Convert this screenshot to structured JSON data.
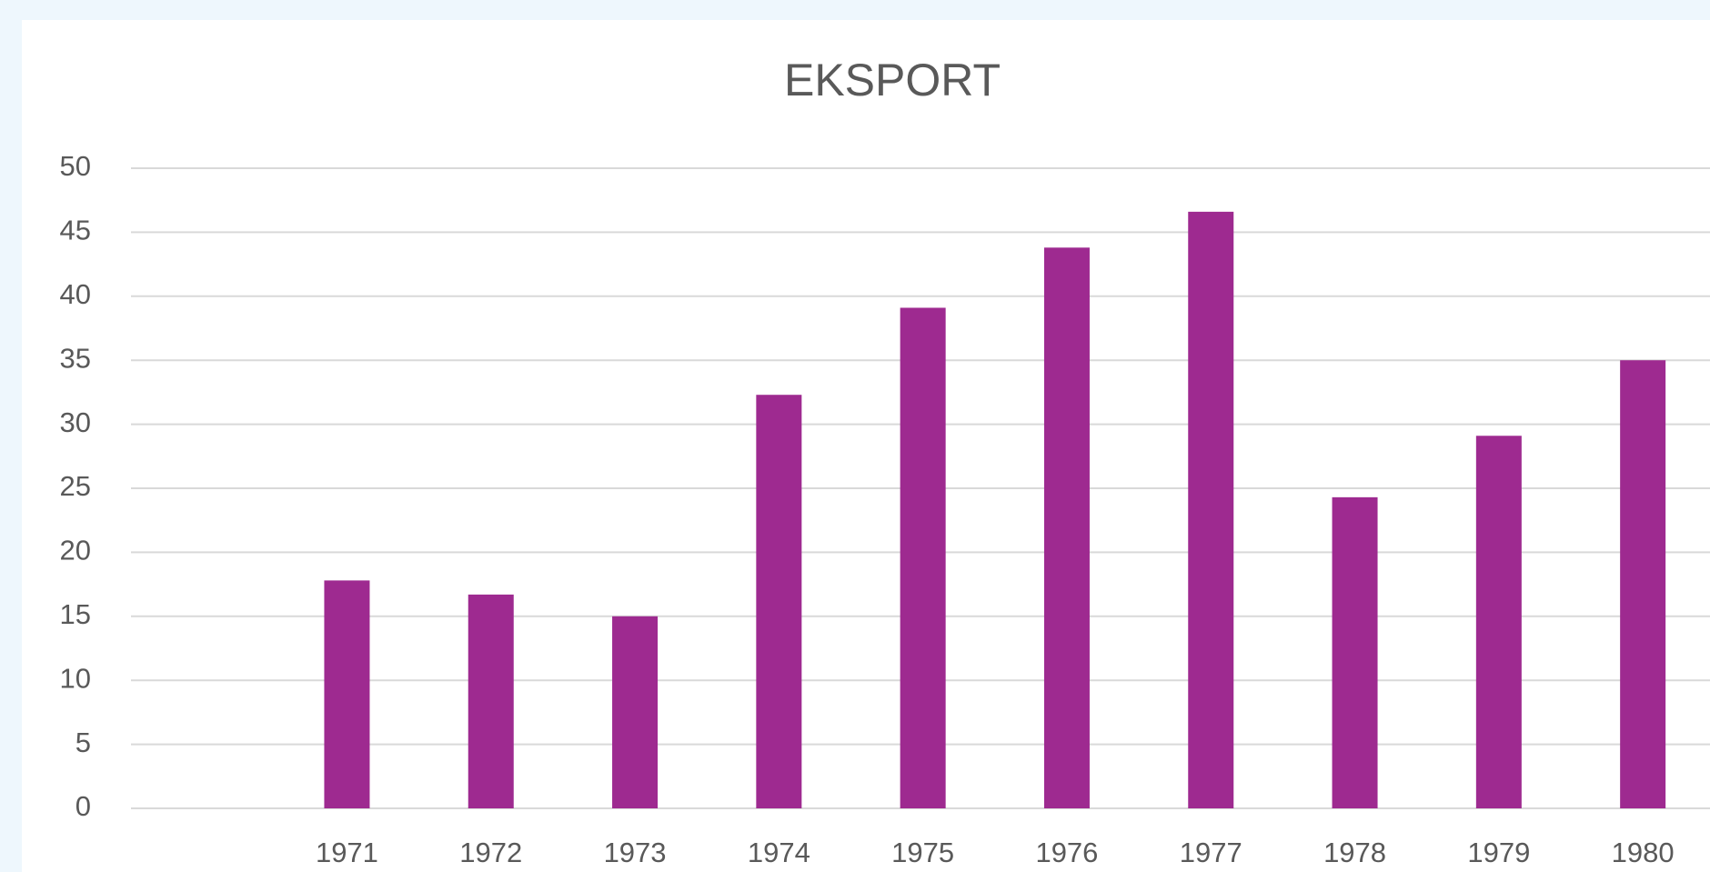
{
  "chart_data": {
    "type": "bar",
    "title": "EKSPORT",
    "categories": [
      null,
      "1971",
      "1972",
      "1973",
      "1974",
      "1975",
      "1976",
      "1977",
      "1978",
      "1979",
      "1980"
    ],
    "values": [
      null,
      17.8,
      16.7,
      15.0,
      32.3,
      39.1,
      43.8,
      46.6,
      24.3,
      29.1,
      35.0
    ],
    "color": "#9e2a90",
    "ylim": [
      0,
      50
    ],
    "yticks": [
      0,
      5,
      10,
      15,
      20,
      25,
      30,
      35,
      40,
      45,
      50
    ],
    "grid": true
  }
}
